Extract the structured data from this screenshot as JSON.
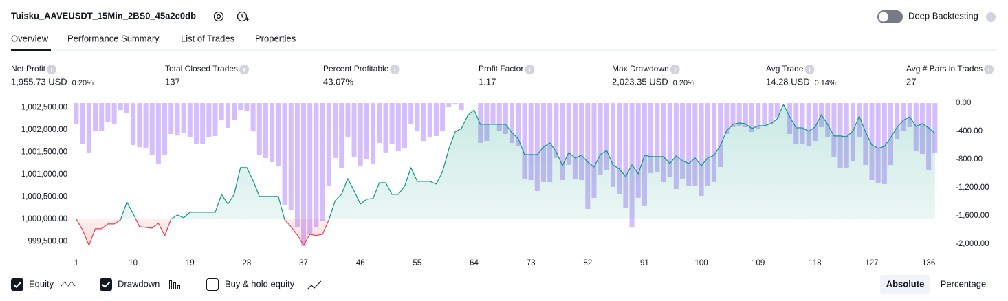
{
  "header": {
    "title": "Tuisku_AAVEUSDT_15Min_2BS0_45a2c0db",
    "deep_backtesting": "Deep Backtesting"
  },
  "tabs": [
    "Overview",
    "Performance Summary",
    "List of Trades",
    "Properties"
  ],
  "metrics": [
    {
      "label": "Net Profit",
      "value": "1,955.73 USD",
      "pct": "0.20%",
      "color": "#089981"
    },
    {
      "label": "Total Closed Trades",
      "value": "137",
      "color": "#131722"
    },
    {
      "label": "Percent Profitable",
      "value": "43.07%",
      "color": "#089981"
    },
    {
      "label": "Profit Factor",
      "value": "1.17",
      "color": "#089981"
    },
    {
      "label": "Max Drawdown",
      "value": "2,023.35 USD",
      "pct": "0.20%",
      "color": "#f23645"
    },
    {
      "label": "Avg Trade",
      "value": "14.28 USD",
      "pct": "0.14%",
      "color": "#089981"
    },
    {
      "label": "Avg # Bars in Trades",
      "value": "27",
      "color": "#131722"
    }
  ],
  "chart_data": {
    "type": "line",
    "x": [
      1,
      2,
      3,
      4,
      5,
      6,
      7,
      8,
      9,
      10,
      11,
      12,
      13,
      14,
      15,
      16,
      17,
      18,
      19,
      20,
      21,
      22,
      23,
      24,
      25,
      26,
      27,
      28,
      29,
      30,
      31,
      32,
      33,
      34,
      35,
      36,
      37,
      38,
      39,
      40,
      41,
      42,
      43,
      44,
      45,
      46,
      47,
      48,
      49,
      50,
      51,
      52,
      53,
      54,
      55,
      56,
      57,
      58,
      59,
      60,
      61,
      62,
      63,
      64,
      65,
      66,
      67,
      68,
      69,
      70,
      71,
      72,
      73,
      74,
      75,
      76,
      77,
      78,
      79,
      80,
      81,
      82,
      83,
      84,
      85,
      86,
      87,
      88,
      89,
      90,
      91,
      92,
      93,
      94,
      95,
      96,
      97,
      98,
      99,
      100,
      101,
      102,
      103,
      104,
      105,
      106,
      107,
      108,
      109,
      110,
      111,
      112,
      113,
      114,
      115,
      116,
      117,
      118,
      119,
      120,
      121,
      122,
      123,
      124,
      125,
      126,
      127,
      128,
      129,
      130,
      131,
      132,
      133,
      134,
      135,
      136,
      137
    ],
    "xlim": [
      1,
      138
    ],
    "xticks": [
      1,
      10,
      19,
      28,
      37,
      46,
      55,
      64,
      73,
      82,
      91,
      100,
      109,
      118,
      127,
      136
    ],
    "ylim": [
      999290,
      1002630
    ],
    "yticks": [
      {
        "value": 999500,
        "label": "999,500.00"
      },
      {
        "value": 1000000,
        "label": "1,000,000.00"
      },
      {
        "value": 1000500,
        "label": "1,000,500.00"
      },
      {
        "value": 1001000,
        "label": "1,001,000.00"
      },
      {
        "value": 1001500,
        "label": "1,001,500.00"
      },
      {
        "value": 1002000,
        "label": "1,002,000.00"
      },
      {
        "value": 1002500,
        "label": "1,002,500.00"
      }
    ],
    "y2lim": [
      -2098,
      20
    ],
    "y2ticks": [
      {
        "value": 0,
        "label": "0.00"
      },
      {
        "value": -400,
        "label": "-400.00"
      },
      {
        "value": -800,
        "label": "-800.00"
      },
      {
        "value": -1200,
        "label": "-1,200.00"
      },
      {
        "value": -1600,
        "label": "-1,600.00"
      },
      {
        "value": -2000,
        "label": "-2,000.00"
      }
    ],
    "series": [
      {
        "name": "Equity",
        "color": "#089981",
        "negative_color": "#f23645",
        "values": [
          1000000,
          999754,
          999415,
          999785,
          999785,
          999892,
          999892,
          999985,
          1000385,
          1000123,
          999831,
          999815,
          999800,
          999908,
          999631,
          1000000,
          1000092,
          1000031,
          1000154,
          1000154,
          1000154,
          1000154,
          1000154,
          1000554,
          1000338,
          1000554,
          1001154,
          1001154,
          1000862,
          1000508,
          1000508,
          1000508,
          1000508,
          999985,
          999831,
          999646,
          999415,
          999662,
          999631,
          999662,
          999985,
          1000415,
          1000554,
          1000908,
          1000631,
          1000338,
          1000446,
          1000462,
          1000815,
          1000815,
          1000554,
          1000554,
          1000738,
          1001154,
          1000846,
          1000846,
          1000846,
          1000785,
          1001062,
          1001569,
          1001954,
          1002031,
          1002323,
          1002446,
          1002123,
          1002123,
          1002123,
          1002123,
          1002123,
          1001938,
          1001800,
          1001446,
          1001446,
          1001446,
          1001615,
          1001708,
          1001508,
          1001200,
          1001492,
          1001369,
          1001431,
          1001277,
          1001169,
          1001446,
          1001538,
          1001215,
          1001123,
          1000954,
          1001215,
          1001015,
          1001431,
          1001400,
          1001400,
          1001400,
          1001246,
          1001415,
          1001308,
          1001246,
          1001369,
          1001200,
          1001369,
          1001431,
          1001646,
          1001985,
          1002123,
          1002154,
          1002138,
          1002031,
          1002092,
          1002092,
          1002138,
          1002246,
          1002569,
          1002292,
          1002046,
          1002046,
          1001969,
          1002062,
          1002338,
          1002123,
          1001862,
          1001862,
          1001846,
          1001969,
          1002308,
          1001954,
          1001662,
          1001585,
          1001631,
          1001831,
          1002062,
          1002215,
          1002292,
          1002077,
          1002138,
          1002046,
          1001923
        ]
      },
      {
        "name": "Drawdown",
        "type": "bar",
        "axis": "y2",
        "color": "#b388ff",
        "values": [
          -293,
          -585,
          -702,
          -390,
          -390,
          -273,
          -302,
          -98,
          -146,
          -595,
          -624,
          -634,
          -732,
          -859,
          -732,
          -439,
          -459,
          -420,
          -488,
          -585,
          -585,
          -488,
          -468,
          -244,
          -351,
          -244,
          -98,
          -117,
          -390,
          -732,
          -780,
          -839,
          -898,
          -1444,
          -1512,
          -1756,
          -2029,
          -1854,
          -1756,
          -1678,
          -1171,
          -780,
          -927,
          -488,
          -761,
          -898,
          -800,
          -859,
          -566,
          -702,
          -585,
          -683,
          -634,
          -293,
          -390,
          -537,
          -488,
          -468,
          -390,
          -49,
          -20,
          -98,
          0,
          0,
          -566,
          -537,
          -293,
          -390,
          -439,
          -566,
          -605,
          -1073,
          -1093,
          -1249,
          -1122,
          -1122,
          -780,
          -1093,
          -878,
          -1073,
          -1093,
          -1502,
          -1346,
          -1024,
          -956,
          -1190,
          -1288,
          -1493,
          -1756,
          -1346,
          -1463,
          -995,
          -976,
          -1122,
          -1054,
          -1220,
          -1073,
          -1171,
          -1171,
          -1317,
          -1171,
          -1122,
          -907,
          -439,
          -341,
          -322,
          -341,
          -410,
          -371,
          -332,
          -293,
          -215,
          0,
          -439,
          -585,
          -585,
          -605,
          -537,
          -341,
          -488,
          -761,
          -917,
          -917,
          -829,
          -488,
          -878,
          -1093,
          -1132,
          -1151,
          -878,
          -507,
          -390,
          -341,
          -683,
          -722,
          -956,
          -702
        ]
      }
    ]
  },
  "options": {
    "buy_hold": "Buy & hold equity",
    "equity_checked": true,
    "drawdown_checked": true,
    "buy_hold_checked": false
  },
  "view_modes": [
    "Absolute",
    "Percentage"
  ]
}
